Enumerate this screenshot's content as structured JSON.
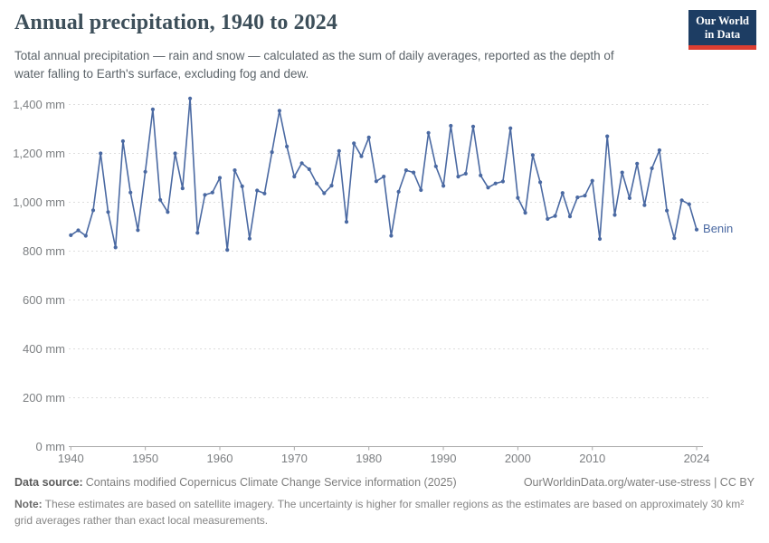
{
  "header": {
    "title": "Annual precipitation, 1940 to 2024",
    "subtitle_line1": "Total annual precipitation — rain and snow — calculated as the sum of daily averages, reported as the depth of",
    "subtitle_line2": "water falling to Earth's surface, excluding fog and dew.",
    "logo": {
      "line1": "Our World",
      "line2": "in Data"
    }
  },
  "chart_data": {
    "type": "line",
    "title": "Annual precipitation, 1940 to 2024",
    "entity": "Benin",
    "unit": "mm",
    "xlabel": "",
    "ylabel": "",
    "xlim": [
      1940,
      2024
    ],
    "ylim": [
      0,
      1450
    ],
    "grid": "horizontal-dashed",
    "legend_position": "line-end-label",
    "line_color": "#4a69a2",
    "years": [
      1940,
      1941,
      1942,
      1943,
      1944,
      1945,
      1946,
      1947,
      1948,
      1949,
      1950,
      1951,
      1952,
      1953,
      1954,
      1955,
      1956,
      1957,
      1958,
      1959,
      1960,
      1961,
      1962,
      1963,
      1964,
      1965,
      1966,
      1967,
      1968,
      1969,
      1970,
      1971,
      1972,
      1973,
      1974,
      1975,
      1976,
      1977,
      1978,
      1979,
      1980,
      1981,
      1982,
      1983,
      1984,
      1985,
      1986,
      1987,
      1988,
      1989,
      1990,
      1991,
      1992,
      1993,
      1994,
      1995,
      1996,
      1997,
      1998,
      1999,
      2000,
      2001,
      2002,
      2003,
      2004,
      2005,
      2006,
      2007,
      2008,
      2009,
      2010,
      2011,
      2012,
      2013,
      2014,
      2015,
      2016,
      2017,
      2018,
      2019,
      2020,
      2021,
      2022,
      2023,
      2024
    ],
    "values": [
      865,
      885,
      863,
      967,
      1200,
      960,
      815,
      1250,
      1040,
      886,
      1125,
      1380,
      1010,
      960,
      1200,
      1057,
      1425,
      875,
      1030,
      1040,
      1100,
      805,
      1131,
      1065,
      851,
      1048,
      1036,
      1205,
      1375,
      1228,
      1105,
      1160,
      1135,
      1077,
      1037,
      1068,
      1210,
      920,
      1241,
      1188,
      1265,
      1086,
      1105,
      863,
      1043,
      1131,
      1122,
      1050,
      1284,
      1147,
      1067,
      1313,
      1105,
      1117,
      1310,
      1110,
      1060,
      1077,
      1085,
      1303,
      1018,
      957,
      1193,
      1082,
      932,
      944,
      1038,
      942,
      1020,
      1027,
      1088,
      850,
      1270,
      948,
      1122,
      1017,
      1158,
      988,
      1139,
      1213,
      966,
      853,
      1008,
      992,
      888
    ],
    "x_ticks": [
      1940,
      1950,
      1960,
      1970,
      1980,
      1990,
      2000,
      2010,
      2024
    ],
    "y_ticks": [
      {
        "v": 0,
        "label": "0 mm"
      },
      {
        "v": 200,
        "label": "200 mm"
      },
      {
        "v": 400,
        "label": "400 mm"
      },
      {
        "v": 600,
        "label": "600 mm"
      },
      {
        "v": 800,
        "label": "800 mm"
      },
      {
        "v": 1000,
        "label": "1,000 mm"
      },
      {
        "v": 1200,
        "label": "1,200 mm"
      },
      {
        "v": 1400,
        "label": "1,400 mm"
      }
    ]
  },
  "footer": {
    "source_label": "Data source:",
    "source_text": "Contains modified Copernicus Climate Change Service information (2025)",
    "url": "OurWorldinData.org/water-use-stress | CC BY",
    "note_label": "Note:",
    "note_text": "These estimates are based on satellite imagery. The uncertainty is higher for smaller regions as the estimates are based on approximately 30 km² grid averages rather than exact local measurements."
  },
  "colors": {
    "line": "#4a69a2",
    "logo_bg": "#1d3d63",
    "logo_accent": "#dc3e32",
    "grid": "#dddddd",
    "axis": "#a9a9a9",
    "tick_text": "#7c7f82"
  }
}
